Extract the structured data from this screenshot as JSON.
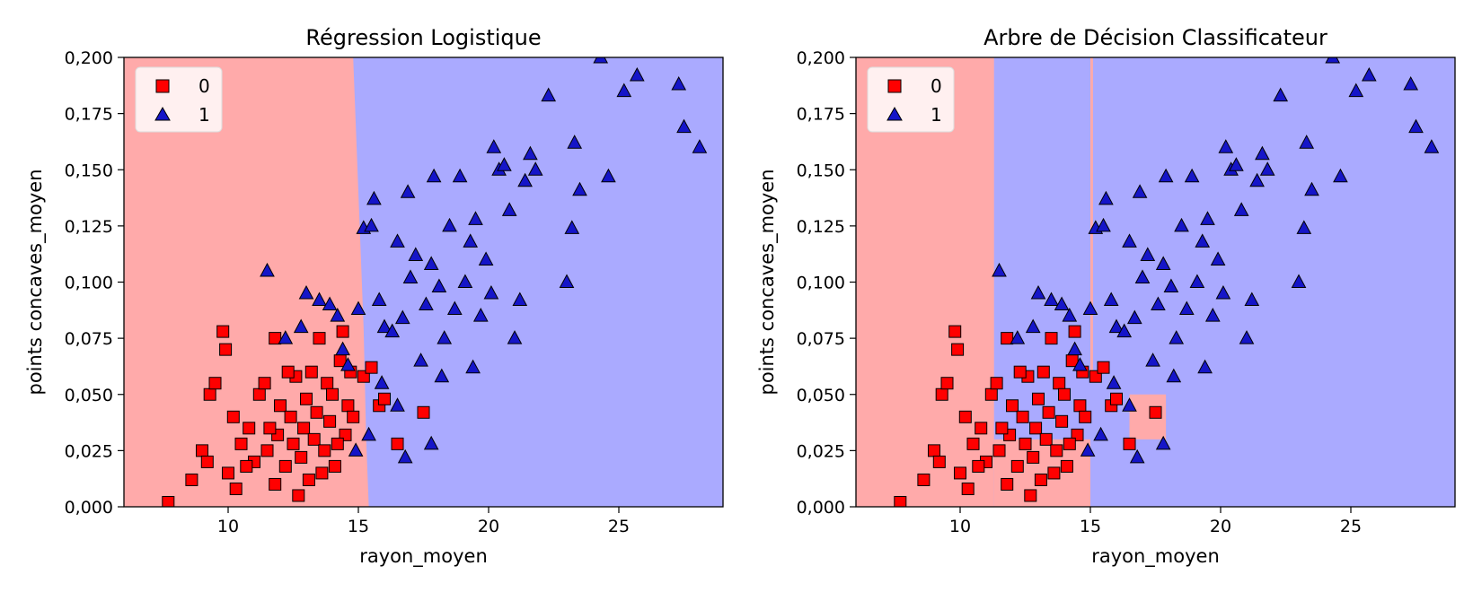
{
  "chart_data": [
    {
      "type": "scatter",
      "title": "Régression Logistique",
      "xlabel": "rayon_moyen",
      "ylabel": "points concaves_moyen",
      "xlim": [
        6.0,
        29.0
      ],
      "ylim": [
        0.0,
        0.2
      ],
      "xticks": [
        "10",
        "15",
        "20",
        "25"
      ],
      "yticks": [
        "0,000",
        "0,025",
        "0,050",
        "0,075",
        "0,100",
        "0,125",
        "0,150",
        "0,175",
        "0,200"
      ],
      "legend": {
        "placement": "top-left",
        "entries": [
          "0",
          "1"
        ]
      },
      "region_colors": {
        "class_0": "#ffaaaa",
        "class_1": "#aaaaff"
      },
      "decision_boundary": [
        [
          14.8,
          0.2
        ],
        [
          15.0,
          0.14
        ],
        [
          15.2,
          0.08
        ],
        [
          15.3,
          0.03
        ],
        [
          15.4,
          0.0
        ]
      ],
      "series": [
        {
          "name": "0",
          "marker": "square",
          "color": "#ff0000",
          "points": [
            [
              7.7,
              0.002
            ],
            [
              8.6,
              0.012
            ],
            [
              9.0,
              0.025
            ],
            [
              9.3,
              0.05
            ],
            [
              9.5,
              0.055
            ],
            [
              9.8,
              0.078
            ],
            [
              9.9,
              0.07
            ],
            [
              10.2,
              0.04
            ],
            [
              10.0,
              0.015
            ],
            [
              10.5,
              0.028
            ],
            [
              10.8,
              0.035
            ],
            [
              11.0,
              0.02
            ],
            [
              11.2,
              0.05
            ],
            [
              11.4,
              0.055
            ],
            [
              11.5,
              0.025
            ],
            [
              11.8,
              0.01
            ],
            [
              11.8,
              0.075
            ],
            [
              11.9,
              0.032
            ],
            [
              12.0,
              0.045
            ],
            [
              12.2,
              0.018
            ],
            [
              12.4,
              0.04
            ],
            [
              12.5,
              0.028
            ],
            [
              12.6,
              0.058
            ],
            [
              12.8,
              0.022
            ],
            [
              12.9,
              0.035
            ],
            [
              13.0,
              0.048
            ],
            [
              13.1,
              0.012
            ],
            [
              13.2,
              0.06
            ],
            [
              13.3,
              0.03
            ],
            [
              13.4,
              0.042
            ],
            [
              13.5,
              0.075
            ],
            [
              13.7,
              0.025
            ],
            [
              13.8,
              0.055
            ],
            [
              13.9,
              0.038
            ],
            [
              14.0,
              0.05
            ],
            [
              14.1,
              0.018
            ],
            [
              14.3,
              0.065
            ],
            [
              14.4,
              0.078
            ],
            [
              14.5,
              0.032
            ],
            [
              14.6,
              0.045
            ],
            [
              14.7,
              0.06
            ],
            [
              14.8,
              0.04
            ],
            [
              15.2,
              0.058
            ],
            [
              15.5,
              0.062
            ],
            [
              15.8,
              0.045
            ],
            [
              16.0,
              0.048
            ],
            [
              16.5,
              0.028
            ],
            [
              17.5,
              0.042
            ],
            [
              9.2,
              0.02
            ],
            [
              10.3,
              0.008
            ],
            [
              10.7,
              0.018
            ],
            [
              11.6,
              0.035
            ],
            [
              12.3,
              0.06
            ],
            [
              12.7,
              0.005
            ],
            [
              13.6,
              0.015
            ],
            [
              14.2,
              0.028
            ]
          ]
        },
        {
          "name": "1",
          "marker": "triangle",
          "color": "#1515c8",
          "points": [
            [
              11.5,
              0.105
            ],
            [
              12.2,
              0.075
            ],
            [
              12.8,
              0.08
            ],
            [
              13.0,
              0.095
            ],
            [
              13.5,
              0.092
            ],
            [
              13.9,
              0.09
            ],
            [
              14.2,
              0.085
            ],
            [
              14.4,
              0.07
            ],
            [
              14.6,
              0.063
            ],
            [
              15.0,
              0.088
            ],
            [
              15.2,
              0.124
            ],
            [
              15.5,
              0.125
            ],
            [
              15.6,
              0.137
            ],
            [
              15.8,
              0.092
            ],
            [
              16.0,
              0.08
            ],
            [
              16.3,
              0.078
            ],
            [
              16.5,
              0.118
            ],
            [
              16.7,
              0.084
            ],
            [
              16.9,
              0.14
            ],
            [
              17.0,
              0.102
            ],
            [
              17.2,
              0.112
            ],
            [
              17.4,
              0.065
            ],
            [
              17.6,
              0.09
            ],
            [
              17.8,
              0.108
            ],
            [
              17.9,
              0.147
            ],
            [
              18.1,
              0.098
            ],
            [
              18.3,
              0.075
            ],
            [
              18.5,
              0.125
            ],
            [
              18.7,
              0.088
            ],
            [
              18.9,
              0.147
            ],
            [
              19.1,
              0.1
            ],
            [
              19.3,
              0.118
            ],
            [
              19.5,
              0.128
            ],
            [
              19.7,
              0.085
            ],
            [
              19.9,
              0.11
            ],
            [
              20.1,
              0.095
            ],
            [
              20.2,
              0.16
            ],
            [
              20.4,
              0.15
            ],
            [
              20.6,
              0.152
            ],
            [
              20.8,
              0.132
            ],
            [
              21.0,
              0.075
            ],
            [
              21.2,
              0.092
            ],
            [
              21.4,
              0.145
            ],
            [
              21.6,
              0.157
            ],
            [
              21.8,
              0.15
            ],
            [
              22.3,
              0.183
            ],
            [
              23.0,
              0.1
            ],
            [
              23.2,
              0.124
            ],
            [
              23.3,
              0.162
            ],
            [
              23.5,
              0.141
            ],
            [
              24.3,
              0.2
            ],
            [
              24.6,
              0.147
            ],
            [
              25.2,
              0.185
            ],
            [
              25.7,
              0.192
            ],
            [
              27.3,
              0.188
            ],
            [
              27.5,
              0.169
            ],
            [
              28.1,
              0.16
            ],
            [
              16.5,
              0.045
            ],
            [
              17.8,
              0.028
            ],
            [
              16.8,
              0.022
            ],
            [
              15.4,
              0.032
            ],
            [
              15.9,
              0.055
            ],
            [
              18.2,
              0.058
            ],
            [
              19.4,
              0.062
            ],
            [
              14.9,
              0.025
            ]
          ]
        }
      ]
    },
    {
      "type": "scatter",
      "title": "Arbre de Décision Classificateur",
      "xlabel": "rayon_moyen",
      "ylabel": "points concaves_moyen",
      "xlim": [
        6.0,
        29.0
      ],
      "ylim": [
        0.0,
        0.2
      ],
      "xticks": [
        "10",
        "15",
        "20",
        "25"
      ],
      "yticks": [
        "0,000",
        "0,025",
        "0,050",
        "0,075",
        "0,100",
        "0,125",
        "0,150",
        "0,175",
        "0,200"
      ],
      "legend": {
        "placement": "top-left",
        "entries": [
          "0",
          "1"
        ]
      },
      "region_colors": {
        "class_0": "#ffaaaa",
        "class_1": "#aaaaff"
      },
      "decision_regions_class_0": [
        [
          6.0,
          11.3,
          0.0,
          0.2
        ],
        [
          11.3,
          15.0,
          0.0,
          0.03
        ],
        [
          15.0,
          15.1,
          0.06,
          0.2
        ],
        [
          16.5,
          17.9,
          0.03,
          0.05
        ]
      ],
      "series": [
        {
          "name": "0",
          "marker": "square",
          "color": "#ff0000",
          "points": [
            [
              7.7,
              0.002
            ],
            [
              8.6,
              0.012
            ],
            [
              9.0,
              0.025
            ],
            [
              9.3,
              0.05
            ],
            [
              9.5,
              0.055
            ],
            [
              9.8,
              0.078
            ],
            [
              9.9,
              0.07
            ],
            [
              10.2,
              0.04
            ],
            [
              10.0,
              0.015
            ],
            [
              10.5,
              0.028
            ],
            [
              10.8,
              0.035
            ],
            [
              11.0,
              0.02
            ],
            [
              11.2,
              0.05
            ],
            [
              11.4,
              0.055
            ],
            [
              11.5,
              0.025
            ],
            [
              11.8,
              0.01
            ],
            [
              11.8,
              0.075
            ],
            [
              11.9,
              0.032
            ],
            [
              12.0,
              0.045
            ],
            [
              12.2,
              0.018
            ],
            [
              12.4,
              0.04
            ],
            [
              12.5,
              0.028
            ],
            [
              12.6,
              0.058
            ],
            [
              12.8,
              0.022
            ],
            [
              12.9,
              0.035
            ],
            [
              13.0,
              0.048
            ],
            [
              13.1,
              0.012
            ],
            [
              13.2,
              0.06
            ],
            [
              13.3,
              0.03
            ],
            [
              13.4,
              0.042
            ],
            [
              13.5,
              0.075
            ],
            [
              13.7,
              0.025
            ],
            [
              13.8,
              0.055
            ],
            [
              13.9,
              0.038
            ],
            [
              14.0,
              0.05
            ],
            [
              14.1,
              0.018
            ],
            [
              14.3,
              0.065
            ],
            [
              14.4,
              0.078
            ],
            [
              14.5,
              0.032
            ],
            [
              14.6,
              0.045
            ],
            [
              14.7,
              0.06
            ],
            [
              14.8,
              0.04
            ],
            [
              15.2,
              0.058
            ],
            [
              15.5,
              0.062
            ],
            [
              15.8,
              0.045
            ],
            [
              16.0,
              0.048
            ],
            [
              16.5,
              0.028
            ],
            [
              17.5,
              0.042
            ],
            [
              9.2,
              0.02
            ],
            [
              10.3,
              0.008
            ],
            [
              10.7,
              0.018
            ],
            [
              11.6,
              0.035
            ],
            [
              12.3,
              0.06
            ],
            [
              12.7,
              0.005
            ],
            [
              13.6,
              0.015
            ],
            [
              14.2,
              0.028
            ]
          ]
        },
        {
          "name": "1",
          "marker": "triangle",
          "color": "#1515c8",
          "points": [
            [
              11.5,
              0.105
            ],
            [
              12.2,
              0.075
            ],
            [
              12.8,
              0.08
            ],
            [
              13.0,
              0.095
            ],
            [
              13.5,
              0.092
            ],
            [
              13.9,
              0.09
            ],
            [
              14.2,
              0.085
            ],
            [
              14.4,
              0.07
            ],
            [
              14.6,
              0.063
            ],
            [
              15.0,
              0.088
            ],
            [
              15.2,
              0.124
            ],
            [
              15.5,
              0.125
            ],
            [
              15.6,
              0.137
            ],
            [
              15.8,
              0.092
            ],
            [
              16.0,
              0.08
            ],
            [
              16.3,
              0.078
            ],
            [
              16.5,
              0.118
            ],
            [
              16.7,
              0.084
            ],
            [
              16.9,
              0.14
            ],
            [
              17.0,
              0.102
            ],
            [
              17.2,
              0.112
            ],
            [
              17.4,
              0.065
            ],
            [
              17.6,
              0.09
            ],
            [
              17.8,
              0.108
            ],
            [
              17.9,
              0.147
            ],
            [
              18.1,
              0.098
            ],
            [
              18.3,
              0.075
            ],
            [
              18.5,
              0.125
            ],
            [
              18.7,
              0.088
            ],
            [
              18.9,
              0.147
            ],
            [
              19.1,
              0.1
            ],
            [
              19.3,
              0.118
            ],
            [
              19.5,
              0.128
            ],
            [
              19.7,
              0.085
            ],
            [
              19.9,
              0.11
            ],
            [
              20.1,
              0.095
            ],
            [
              20.2,
              0.16
            ],
            [
              20.4,
              0.15
            ],
            [
              20.6,
              0.152
            ],
            [
              20.8,
              0.132
            ],
            [
              21.0,
              0.075
            ],
            [
              21.2,
              0.092
            ],
            [
              21.4,
              0.145
            ],
            [
              21.6,
              0.157
            ],
            [
              21.8,
              0.15
            ],
            [
              22.3,
              0.183
            ],
            [
              23.0,
              0.1
            ],
            [
              23.2,
              0.124
            ],
            [
              23.3,
              0.162
            ],
            [
              23.5,
              0.141
            ],
            [
              24.3,
              0.2
            ],
            [
              24.6,
              0.147
            ],
            [
              25.2,
              0.185
            ],
            [
              25.7,
              0.192
            ],
            [
              27.3,
              0.188
            ],
            [
              27.5,
              0.169
            ],
            [
              28.1,
              0.16
            ],
            [
              16.5,
              0.045
            ],
            [
              17.8,
              0.028
            ],
            [
              16.8,
              0.022
            ],
            [
              15.4,
              0.032
            ],
            [
              15.9,
              0.055
            ],
            [
              18.2,
              0.058
            ],
            [
              19.4,
              0.062
            ],
            [
              14.9,
              0.025
            ]
          ]
        }
      ]
    }
  ]
}
